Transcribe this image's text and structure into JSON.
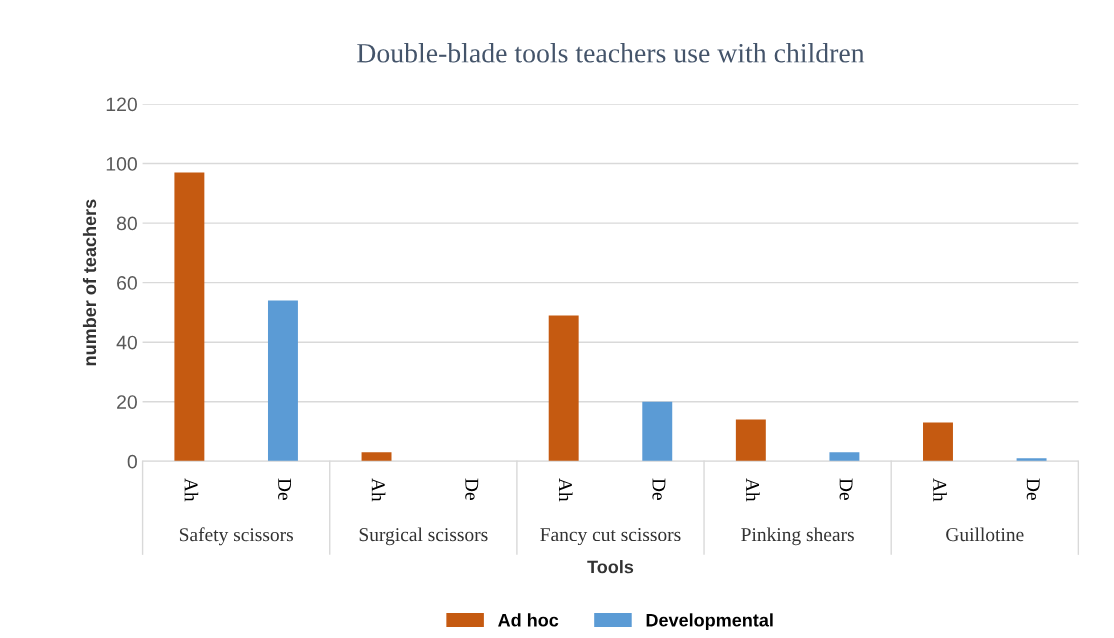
{
  "chart_data": {
    "type": "bar",
    "title": "Double-blade tools teachers use with children",
    "xlabel": "Tools",
    "ylabel": "number of teachers",
    "categories": [
      "Ah",
      "De",
      "Ah",
      "De",
      "Ah",
      "De",
      "Ah",
      "De",
      "Ah",
      "De"
    ],
    "series": [
      {
        "name": "Ad hoc",
        "color": "#c55a11",
        "values": [
          97,
          null,
          3,
          null,
          49,
          null,
          14,
          null,
          13,
          null
        ]
      },
      {
        "name": "Developmental",
        "color": "#5b9bd5",
        "values": [
          null,
          54,
          null,
          0,
          null,
          20,
          null,
          3,
          null,
          1
        ]
      }
    ],
    "annotations": [
      "Safety scissors",
      "Surgical scissors",
      "Fancy cut scissors",
      "Pinking shears",
      "Guillotine"
    ],
    "ylim": [
      0,
      120
    ],
    "yticks": [
      0,
      20,
      40,
      60,
      80,
      100,
      120
    ],
    "grid": "y",
    "legend": "bottom"
  }
}
